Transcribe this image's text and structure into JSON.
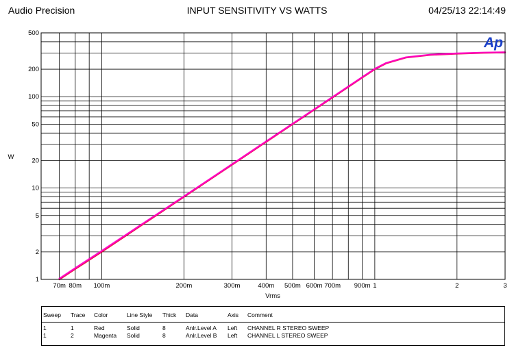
{
  "header": {
    "left": "Audio Precision",
    "title": "INPUT SENSITIVITY  VS    WATTS",
    "timestamp": "04/25/13 22:14:49"
  },
  "logo": {
    "text": "Ap",
    "color": "#1a3fc8"
  },
  "colors": {
    "red": "#e8002a",
    "magenta": "#ff00c8",
    "grid": "#000000"
  },
  "chart_data": {
    "type": "line",
    "title": "INPUT SENSITIVITY  VS    WATTS",
    "xlabel": "Vrms",
    "ylabel": "W",
    "xscale": "log",
    "yscale": "log",
    "xlim": [
      0.06,
      3
    ],
    "ylim": [
      1,
      500
    ],
    "grid": true,
    "x_ticks": [
      {
        "v": 0.07,
        "label": "70m"
      },
      {
        "v": 0.08,
        "label": "80m"
      },
      {
        "v": 0.1,
        "label": "100m"
      },
      {
        "v": 0.2,
        "label": "200m"
      },
      {
        "v": 0.3,
        "label": "300m"
      },
      {
        "v": 0.4,
        "label": "400m"
      },
      {
        "v": 0.5,
        "label": "500m"
      },
      {
        "v": 0.6,
        "label": "600m"
      },
      {
        "v": 0.7,
        "label": "700m"
      },
      {
        "v": 0.9,
        "label": "900m"
      },
      {
        "v": 1,
        "label": "1"
      },
      {
        "v": 2,
        "label": "2"
      },
      {
        "v": 3,
        "label": "3"
      }
    ],
    "y_ticks": [
      {
        "v": 1,
        "label": "1"
      },
      {
        "v": 2,
        "label": "2"
      },
      {
        "v": 5,
        "label": "5"
      },
      {
        "v": 10,
        "label": "10"
      },
      {
        "v": 20,
        "label": "20"
      },
      {
        "v": 50,
        "label": "50"
      },
      {
        "v": 100,
        "label": "100"
      },
      {
        "v": 200,
        "label": "200"
      },
      {
        "v": 500,
        "label": "500"
      }
    ],
    "series": [
      {
        "name": "CHANNEL R",
        "color": "red",
        "x": [
          0.07,
          0.08,
          0.1,
          0.2,
          0.3,
          0.4,
          0.5,
          0.6,
          0.7,
          0.9,
          1.0,
          1.1,
          1.3,
          1.6,
          2.0,
          2.5,
          3.0
        ],
        "y": [
          1.0,
          1.3,
          2.0,
          8.0,
          18,
          32,
          50,
          72,
          98,
          162,
          200,
          232,
          268,
          287,
          296,
          302,
          305
        ]
      },
      {
        "name": "CHANNEL L",
        "color": "magenta",
        "x": [
          0.07,
          0.08,
          0.1,
          0.2,
          0.3,
          0.4,
          0.5,
          0.6,
          0.7,
          0.9,
          1.0,
          1.1,
          1.3,
          1.6,
          2.0,
          2.5,
          3.0
        ],
        "y": [
          1.02,
          1.33,
          2.05,
          8.1,
          18.2,
          32.4,
          50.6,
          72.8,
          99,
          164,
          202,
          234,
          270,
          289,
          298,
          304,
          307
        ]
      }
    ]
  },
  "legend": {
    "headers": [
      "Sweep",
      "Trace",
      "Color",
      "Line Style",
      "Thick",
      "Data",
      "Axis",
      "Comment"
    ],
    "rows": [
      [
        "1",
        "1",
        "Red",
        "Solid",
        "8",
        "Anlr.Level A",
        "Left",
        "CHANNEL R   STEREO SWEEP"
      ],
      [
        "1",
        "2",
        "Magenta",
        "Solid",
        "8",
        "Anlr.Level B",
        "Left",
        "CHANNEL L   STEREO SWEEP"
      ]
    ]
  }
}
